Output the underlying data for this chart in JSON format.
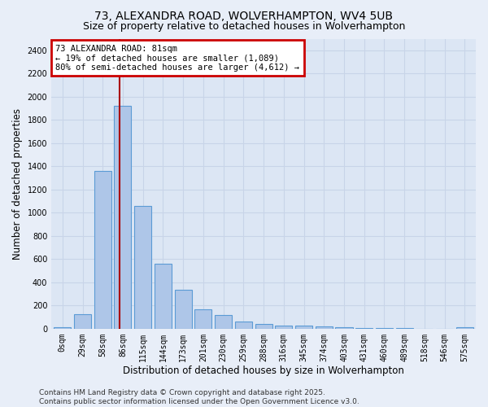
{
  "title": "73, ALEXANDRA ROAD, WOLVERHAMPTON, WV4 5UB",
  "subtitle": "Size of property relative to detached houses in Wolverhampton",
  "xlabel": "Distribution of detached houses by size in Wolverhampton",
  "ylabel": "Number of detached properties",
  "footer_line1": "Contains HM Land Registry data © Crown copyright and database right 2025.",
  "footer_line2": "Contains public sector information licensed under the Open Government Licence v3.0.",
  "bar_labels": [
    "0sqm",
    "29sqm",
    "58sqm",
    "86sqm",
    "115sqm",
    "144sqm",
    "173sqm",
    "201sqm",
    "230sqm",
    "259sqm",
    "288sqm",
    "316sqm",
    "345sqm",
    "374sqm",
    "403sqm",
    "431sqm",
    "460sqm",
    "489sqm",
    "518sqm",
    "546sqm",
    "575sqm"
  ],
  "bar_values": [
    10,
    125,
    1360,
    1920,
    1060,
    560,
    335,
    170,
    115,
    63,
    38,
    28,
    25,
    20,
    13,
    8,
    5,
    3,
    2,
    1,
    10
  ],
  "bar_color": "#aec6e8",
  "bar_edgecolor": "#5b9bd5",
  "vline_x": 2.82,
  "vline_color": "#aa0000",
  "annotation_text": "73 ALEXANDRA ROAD: 81sqm\n← 19% of detached houses are smaller (1,089)\n80% of semi-detached houses are larger (4,612) →",
  "annotation_box_color": "#cc0000",
  "annotation_text_color": "black",
  "ylim": [
    0,
    2500
  ],
  "yticks": [
    0,
    200,
    400,
    600,
    800,
    1000,
    1200,
    1400,
    1600,
    1800,
    2000,
    2200,
    2400
  ],
  "background_color": "#e8eef8",
  "plot_background": "#dce6f4",
  "grid_color": "#c8d4e8",
  "title_fontsize": 10,
  "subtitle_fontsize": 9,
  "label_fontsize": 8.5,
  "tick_fontsize": 7,
  "footer_fontsize": 6.5
}
